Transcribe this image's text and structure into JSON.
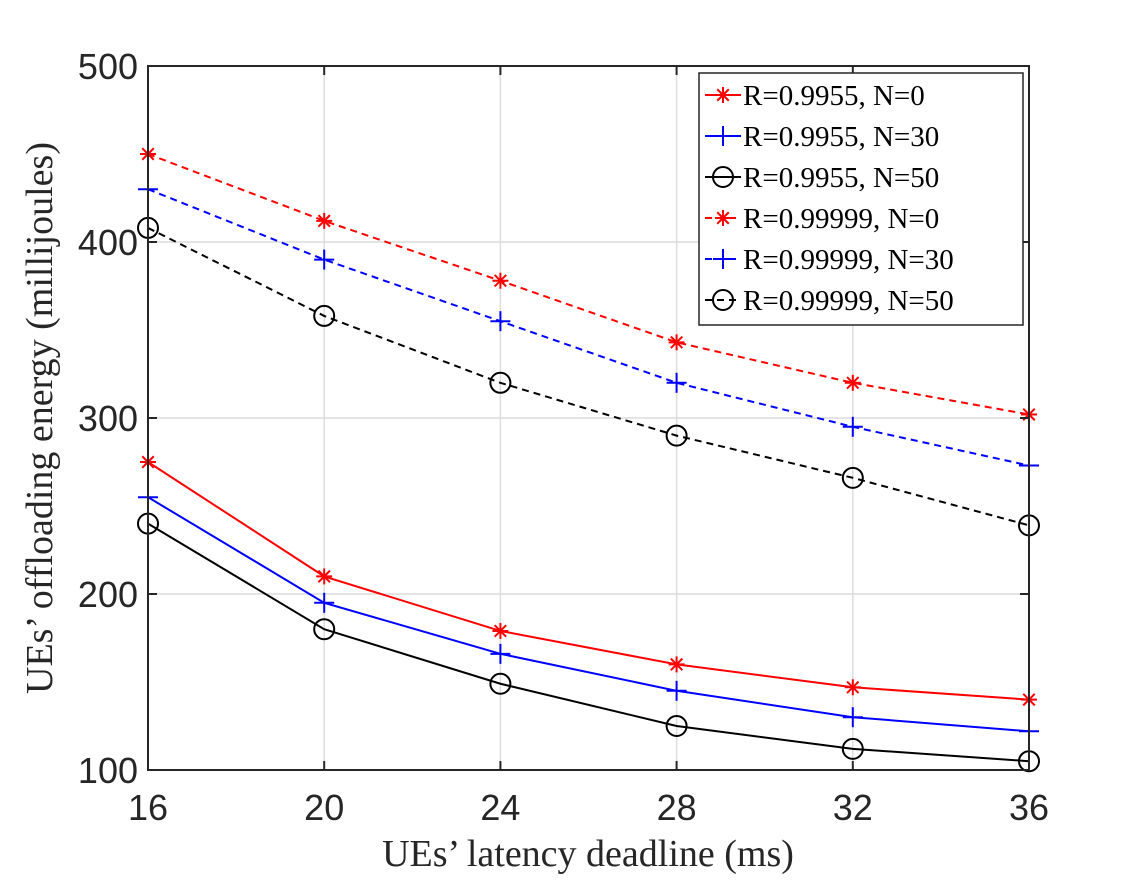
{
  "chart_data": {
    "type": "line",
    "x": [
      16,
      20,
      24,
      28,
      32,
      36
    ],
    "xlabel": "UEs’ latency deadline (ms)",
    "ylabel": "UEs’ offloading energy (millijoules)",
    "xlim": [
      16,
      36
    ],
    "ylim": [
      100,
      500
    ],
    "xticks": [
      "16",
      "20",
      "24",
      "28",
      "32",
      "36"
    ],
    "yticks": [
      "100",
      "200",
      "300",
      "400",
      "500"
    ],
    "grid": true,
    "legend_position": "top-right",
    "series": [
      {
        "name": "R=0.9955, N=0",
        "color": "#ff0000",
        "line": "solid",
        "marker": "asterisk",
        "values": [
          275,
          210,
          179,
          160,
          147,
          140
        ]
      },
      {
        "name": "R=0.9955, N=30",
        "color": "#0000ff",
        "line": "solid",
        "marker": "plus",
        "values": [
          255,
          195,
          166,
          145,
          130,
          122
        ]
      },
      {
        "name": "R=0.9955, N=50",
        "color": "#000000",
        "line": "solid",
        "marker": "circle",
        "values": [
          240,
          180,
          149,
          125,
          112,
          105
        ]
      },
      {
        "name": "R=0.99999, N=0",
        "color": "#ff0000",
        "line": "dashed",
        "marker": "asterisk",
        "values": [
          450,
          412,
          378,
          343,
          320,
          302
        ]
      },
      {
        "name": "R=0.99999, N=30",
        "color": "#0000ff",
        "line": "dashed",
        "marker": "plus",
        "values": [
          430,
          390,
          355,
          320,
          295,
          273
        ]
      },
      {
        "name": "R=0.99999, N=50",
        "color": "#000000",
        "line": "dashed",
        "marker": "circle",
        "values": [
          408,
          358,
          320,
          290,
          266,
          239
        ]
      }
    ]
  }
}
